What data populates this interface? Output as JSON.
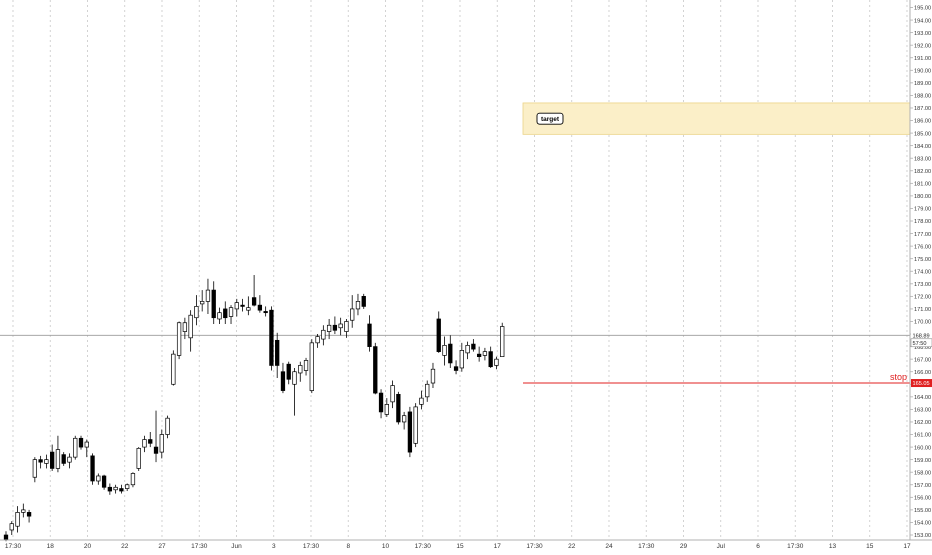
{
  "chart_data": {
    "type": "candlestick",
    "price_axis": {
      "min": 153.0,
      "max": 195.0,
      "step": 1.0,
      "tick_decimals": 2,
      "side": "right"
    },
    "time_axis_labels": [
      "17:30",
      "18",
      "20",
      "22",
      "27",
      "17:30",
      "Jun",
      "3",
      "17:30",
      "8",
      "10",
      "17:30",
      "15",
      "17",
      "17:30",
      "22",
      "24",
      "17:30",
      "29",
      "Jul",
      "6",
      "17:30",
      "13",
      "15",
      "17"
    ],
    "grid": {
      "vertical": "dotted",
      "horizontal": "off"
    },
    "candles": [
      {
        "o": 153.0,
        "h": 153.3,
        "l": 152.5,
        "c": 152.6
      },
      {
        "o": 153.4,
        "h": 154.1,
        "l": 153.0,
        "c": 153.9
      },
      {
        "o": 153.7,
        "h": 155.3,
        "l": 153.2,
        "c": 154.8
      },
      {
        "o": 154.8,
        "h": 155.5,
        "l": 154.4,
        "c": 155.0
      },
      {
        "o": 154.8,
        "h": 155.0,
        "l": 154.0,
        "c": 154.5
      },
      {
        "o": 157.6,
        "h": 159.2,
        "l": 157.2,
        "c": 159.0
      },
      {
        "o": 159.0,
        "h": 159.3,
        "l": 158.3,
        "c": 158.8
      },
      {
        "o": 158.7,
        "h": 159.4,
        "l": 158.3,
        "c": 159.0
      },
      {
        "o": 159.6,
        "h": 160.2,
        "l": 158.1,
        "c": 158.3
      },
      {
        "o": 158.3,
        "h": 160.9,
        "l": 158.0,
        "c": 159.8
      },
      {
        "o": 159.4,
        "h": 159.6,
        "l": 158.5,
        "c": 158.7
      },
      {
        "o": 158.8,
        "h": 159.5,
        "l": 158.3,
        "c": 159.2
      },
      {
        "o": 159.2,
        "h": 160.9,
        "l": 159.0,
        "c": 160.7
      },
      {
        "o": 160.7,
        "h": 160.9,
        "l": 159.8,
        "c": 160.0
      },
      {
        "o": 160.0,
        "h": 160.6,
        "l": 159.2,
        "c": 160.4
      },
      {
        "o": 159.3,
        "h": 159.5,
        "l": 157.0,
        "c": 157.3
      },
      {
        "o": 157.3,
        "h": 157.9,
        "l": 157.0,
        "c": 157.7
      },
      {
        "o": 157.7,
        "h": 157.8,
        "l": 156.6,
        "c": 156.8
      },
      {
        "o": 156.8,
        "h": 157.1,
        "l": 156.2,
        "c": 156.5
      },
      {
        "o": 156.6,
        "h": 157.0,
        "l": 156.3,
        "c": 156.8
      },
      {
        "o": 156.7,
        "h": 157.0,
        "l": 156.3,
        "c": 156.5
      },
      {
        "o": 156.7,
        "h": 157.1,
        "l": 156.5,
        "c": 157.0
      },
      {
        "o": 157.0,
        "h": 158.0,
        "l": 156.8,
        "c": 157.9
      },
      {
        "o": 158.3,
        "h": 160.0,
        "l": 158.1,
        "c": 159.9
      },
      {
        "o": 160.0,
        "h": 160.9,
        "l": 159.6,
        "c": 160.6
      },
      {
        "o": 160.6,
        "h": 161.2,
        "l": 160.0,
        "c": 160.3
      },
      {
        "o": 160.0,
        "h": 162.9,
        "l": 158.8,
        "c": 159.5
      },
      {
        "o": 159.6,
        "h": 161.4,
        "l": 159.1,
        "c": 161.0
      },
      {
        "o": 161.0,
        "h": 162.5,
        "l": 160.7,
        "c": 162.3
      },
      {
        "o": 165.0,
        "h": 167.7,
        "l": 164.9,
        "c": 167.4
      },
      {
        "o": 167.3,
        "h": 170.0,
        "l": 167.0,
        "c": 169.9
      },
      {
        "o": 169.2,
        "h": 170.3,
        "l": 168.6,
        "c": 169.9
      },
      {
        "o": 168.7,
        "h": 170.9,
        "l": 167.6,
        "c": 170.5
      },
      {
        "o": 170.3,
        "h": 172.1,
        "l": 169.7,
        "c": 171.2
      },
      {
        "o": 171.4,
        "h": 172.5,
        "l": 170.8,
        "c": 171.6
      },
      {
        "o": 171.6,
        "h": 173.4,
        "l": 170.6,
        "c": 172.5
      },
      {
        "o": 172.5,
        "h": 173.2,
        "l": 169.8,
        "c": 170.3
      },
      {
        "o": 170.2,
        "h": 171.1,
        "l": 169.8,
        "c": 170.7
      },
      {
        "o": 171.0,
        "h": 171.6,
        "l": 169.8,
        "c": 170.3
      },
      {
        "o": 170.4,
        "h": 171.3,
        "l": 169.8,
        "c": 171.1
      },
      {
        "o": 171.0,
        "h": 171.8,
        "l": 170.4,
        "c": 171.5
      },
      {
        "o": 171.3,
        "h": 171.8,
        "l": 170.8,
        "c": 171.2
      },
      {
        "o": 170.9,
        "h": 172.0,
        "l": 170.5,
        "c": 171.1
      },
      {
        "o": 171.9,
        "h": 173.7,
        "l": 171.2,
        "c": 171.3
      },
      {
        "o": 171.3,
        "h": 172.1,
        "l": 170.7,
        "c": 170.9
      },
      {
        "o": 170.8,
        "h": 171.2,
        "l": 170.4,
        "c": 170.7
      },
      {
        "o": 170.9,
        "h": 171.2,
        "l": 166.1,
        "c": 166.5
      },
      {
        "o": 168.5,
        "h": 169.1,
        "l": 165.5,
        "c": 166.5
      },
      {
        "o": 166.0,
        "h": 166.7,
        "l": 164.3,
        "c": 164.5
      },
      {
        "o": 166.6,
        "h": 166.8,
        "l": 165.0,
        "c": 165.4
      },
      {
        "o": 165.0,
        "h": 166.3,
        "l": 162.5,
        "c": 166.0
      },
      {
        "o": 165.9,
        "h": 166.8,
        "l": 165.2,
        "c": 166.5
      },
      {
        "o": 166.1,
        "h": 167.1,
        "l": 165.7,
        "c": 166.9
      },
      {
        "o": 164.5,
        "h": 168.6,
        "l": 164.3,
        "c": 168.3
      },
      {
        "o": 168.3,
        "h": 169.0,
        "l": 167.9,
        "c": 168.8
      },
      {
        "o": 168.6,
        "h": 169.7,
        "l": 168.1,
        "c": 169.3
      },
      {
        "o": 169.2,
        "h": 170.2,
        "l": 168.6,
        "c": 169.7
      },
      {
        "o": 169.7,
        "h": 170.4,
        "l": 169.0,
        "c": 169.3
      },
      {
        "o": 169.5,
        "h": 170.3,
        "l": 168.9,
        "c": 169.8
      },
      {
        "o": 169.2,
        "h": 170.2,
        "l": 168.7,
        "c": 170.0
      },
      {
        "o": 170.1,
        "h": 172.1,
        "l": 169.5,
        "c": 171.0
      },
      {
        "o": 171.0,
        "h": 172.2,
        "l": 170.5,
        "c": 171.6
      },
      {
        "o": 172.0,
        "h": 172.2,
        "l": 171.0,
        "c": 171.2
      },
      {
        "o": 169.8,
        "h": 170.5,
        "l": 167.6,
        "c": 168.0
      },
      {
        "o": 168.0,
        "h": 168.3,
        "l": 164.2,
        "c": 164.3
      },
      {
        "o": 164.3,
        "h": 164.6,
        "l": 162.3,
        "c": 162.8
      },
      {
        "o": 162.6,
        "h": 163.9,
        "l": 162.4,
        "c": 163.4
      },
      {
        "o": 163.6,
        "h": 165.3,
        "l": 163.1,
        "c": 164.9
      },
      {
        "o": 164.2,
        "h": 164.4,
        "l": 161.8,
        "c": 162.0
      },
      {
        "o": 162.0,
        "h": 162.8,
        "l": 161.4,
        "c": 162.5
      },
      {
        "o": 162.8,
        "h": 163.2,
        "l": 159.2,
        "c": 159.6
      },
      {
        "o": 160.3,
        "h": 163.5,
        "l": 160.0,
        "c": 163.2
      },
      {
        "o": 163.4,
        "h": 164.5,
        "l": 163.0,
        "c": 163.9
      },
      {
        "o": 164.0,
        "h": 165.3,
        "l": 163.6,
        "c": 165.0
      },
      {
        "o": 165.1,
        "h": 166.7,
        "l": 164.7,
        "c": 166.2
      },
      {
        "o": 170.2,
        "h": 170.8,
        "l": 167.5,
        "c": 167.6
      },
      {
        "o": 167.3,
        "h": 168.8,
        "l": 166.5,
        "c": 168.1
      },
      {
        "o": 168.2,
        "h": 168.9,
        "l": 166.3,
        "c": 166.7
      },
      {
        "o": 166.4,
        "h": 166.9,
        "l": 165.8,
        "c": 166.1
      },
      {
        "o": 166.3,
        "h": 168.3,
        "l": 166.0,
        "c": 167.7
      },
      {
        "o": 167.5,
        "h": 168.4,
        "l": 167.0,
        "c": 168.1
      },
      {
        "o": 168.2,
        "h": 168.6,
        "l": 167.6,
        "c": 167.8
      },
      {
        "o": 167.4,
        "h": 168.0,
        "l": 166.8,
        "c": 167.2
      },
      {
        "o": 167.3,
        "h": 167.9,
        "l": 166.9,
        "c": 167.6
      },
      {
        "o": 167.6,
        "h": 168.0,
        "l": 166.3,
        "c": 166.4
      },
      {
        "o": 166.5,
        "h": 167.2,
        "l": 166.2,
        "c": 167.0
      },
      {
        "o": 167.2,
        "h": 169.9,
        "l": 167.2,
        "c": 169.6
      }
    ],
    "annotations": {
      "target_zone": {
        "from": 184.9,
        "to": 187.4,
        "label": "target"
      },
      "stop_line": {
        "value": 165.1,
        "label": "stop",
        "price_tag": "165.05"
      },
      "current_price": {
        "value": 168.9,
        "price_tag": "168.89",
        "countdown": "57:50"
      }
    },
    "colors": {
      "up_candle": "#ffffff",
      "down_candle": "#000000",
      "candle_outline": "#000000",
      "target_zone_fill": "#fbefc8",
      "target_zone_border": "#ecd386",
      "stop_line": "#e02020",
      "current_price_line": "#9a9a9a",
      "axis_text": "#333333",
      "grid": "#c8c8c8"
    }
  }
}
